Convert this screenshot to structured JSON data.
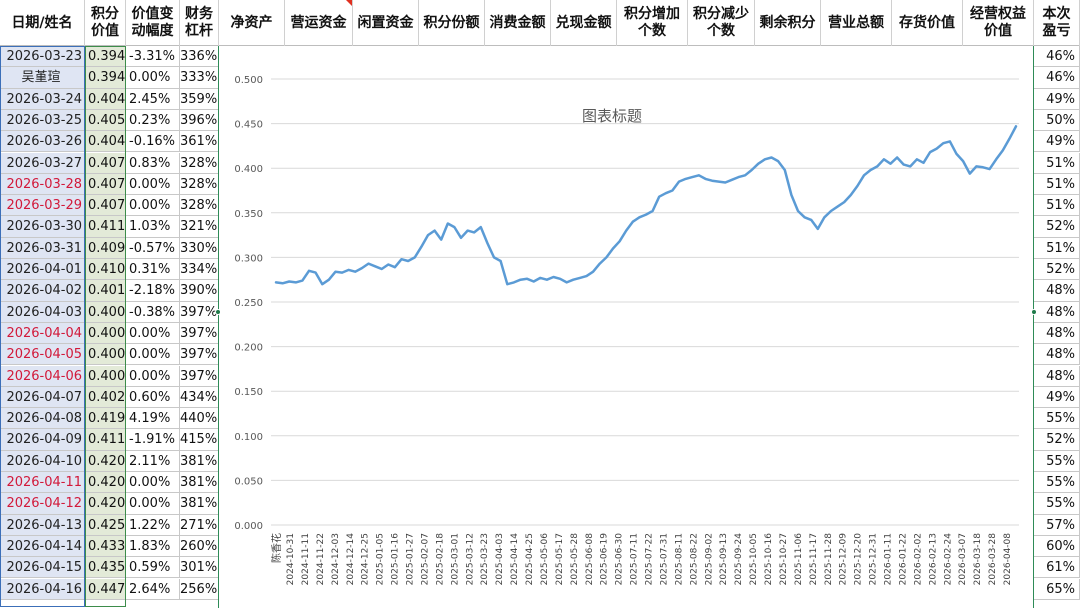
{
  "headers": {
    "date": "日期/姓名",
    "value": "积分\n价值",
    "change": "价值变\n动幅度",
    "leverage": "财务\n杠杆",
    "net_assets": "净资产",
    "operating_funds": "营运资金",
    "idle_funds": "闲置资金",
    "points_share": "积分份额",
    "consumption": "消费金额",
    "redeem": "兑现金额",
    "points_increase": "积分增加\n个数",
    "points_decrease": "积分减少\n个数",
    "remaining_points": "剩余积分",
    "revenue": "营业总额",
    "inventory": "存货价值",
    "equity_value": "经营权益\n价值",
    "pnl": "本次\n盈亏"
  },
  "rows": [
    {
      "date": "2026-03-23",
      "value": "0.394",
      "change": "-3.31%",
      "leverage": "336%",
      "pnl": "46%",
      "weekend": false
    },
    {
      "date": "吴堇瑄",
      "value": "0.394",
      "change": "0.00%",
      "leverage": "333%",
      "pnl": "46%",
      "weekend": false,
      "name_row": true
    },
    {
      "date": "2026-03-24",
      "value": "0.404",
      "change": "2.45%",
      "leverage": "359%",
      "pnl": "49%",
      "weekend": false
    },
    {
      "date": "2026-03-25",
      "value": "0.405",
      "change": "0.23%",
      "leverage": "396%",
      "pnl": "50%",
      "weekend": false
    },
    {
      "date": "2026-03-26",
      "value": "0.404",
      "change": "-0.16%",
      "leverage": "361%",
      "pnl": "49%",
      "weekend": false
    },
    {
      "date": "2026-03-27",
      "value": "0.407",
      "change": "0.83%",
      "leverage": "328%",
      "pnl": "51%",
      "weekend": false
    },
    {
      "date": "2026-03-28",
      "value": "0.407",
      "change": "0.00%",
      "leverage": "328%",
      "pnl": "51%",
      "weekend": true
    },
    {
      "date": "2026-03-29",
      "value": "0.407",
      "change": "0.00%",
      "leverage": "328%",
      "pnl": "51%",
      "weekend": true
    },
    {
      "date": "2026-03-30",
      "value": "0.411",
      "change": "1.03%",
      "leverage": "321%",
      "pnl": "52%",
      "weekend": false
    },
    {
      "date": "2026-03-31",
      "value": "0.409",
      "change": "-0.57%",
      "leverage": "330%",
      "pnl": "51%",
      "weekend": false
    },
    {
      "date": "2026-04-01",
      "value": "0.410",
      "change": "0.31%",
      "leverage": "334%",
      "pnl": "52%",
      "weekend": false
    },
    {
      "date": "2026-04-02",
      "value": "0.401",
      "change": "-2.18%",
      "leverage": "390%",
      "pnl": "48%",
      "weekend": false
    },
    {
      "date": "2026-04-03",
      "value": "0.400",
      "change": "-0.38%",
      "leverage": "397%",
      "pnl": "48%",
      "weekend": false
    },
    {
      "date": "2026-04-04",
      "value": "0.400",
      "change": "0.00%",
      "leverage": "397%",
      "pnl": "48%",
      "weekend": true
    },
    {
      "date": "2026-04-05",
      "value": "0.400",
      "change": "0.00%",
      "leverage": "397%",
      "pnl": "48%",
      "weekend": true
    },
    {
      "date": "2026-04-06",
      "value": "0.400",
      "change": "0.00%",
      "leverage": "397%",
      "pnl": "48%",
      "weekend": true
    },
    {
      "date": "2026-04-07",
      "value": "0.402",
      "change": "0.60%",
      "leverage": "434%",
      "pnl": "49%",
      "weekend": false
    },
    {
      "date": "2026-04-08",
      "value": "0.419",
      "change": "4.19%",
      "leverage": "440%",
      "pnl": "55%",
      "weekend": false
    },
    {
      "date": "2026-04-09",
      "value": "0.411",
      "change": "-1.91%",
      "leverage": "415%",
      "pnl": "52%",
      "weekend": false
    },
    {
      "date": "2026-04-10",
      "value": "0.420",
      "change": "2.11%",
      "leverage": "381%",
      "pnl": "55%",
      "weekend": false
    },
    {
      "date": "2026-04-11",
      "value": "0.420",
      "change": "0.00%",
      "leverage": "381%",
      "pnl": "55%",
      "weekend": true
    },
    {
      "date": "2026-04-12",
      "value": "0.420",
      "change": "0.00%",
      "leverage": "381%",
      "pnl": "55%",
      "weekend": true
    },
    {
      "date": "2026-04-13",
      "value": "0.425",
      "change": "1.22%",
      "leverage": "271%",
      "pnl": "57%",
      "weekend": false
    },
    {
      "date": "2026-04-14",
      "value": "0.433",
      "change": "1.83%",
      "leverage": "260%",
      "pnl": "60%",
      "weekend": false
    },
    {
      "date": "2026-04-15",
      "value": "0.435",
      "change": "0.59%",
      "leverage": "301%",
      "pnl": "61%",
      "weekend": false
    },
    {
      "date": "2026-04-16",
      "value": "0.447",
      "change": "2.64%",
      "leverage": "256%",
      "pnl": "65%",
      "weekend": false
    }
  ],
  "colors": {
    "line": "#5b9bd5",
    "weekend_text": "#d2193a",
    "date_bg": "#dfe5f3",
    "value_bg": "#e3ead8",
    "selection_green": "#2e8b57"
  },
  "chart_data": {
    "type": "line",
    "title": "图表标题",
    "first_category": "陈香花",
    "ylim": [
      0,
      0.5
    ],
    "y_ticks": [
      "0.500",
      "0.450",
      "0.400",
      "0.350",
      "0.300",
      "0.250",
      "0.200",
      "0.150",
      "0.100",
      "0.050",
      "0.000"
    ],
    "grid": true,
    "legend": "none",
    "x_tick_labels": [
      "2024-10-31",
      "2024-11-11",
      "2024-11-22",
      "2024-12-03",
      "2024-12-14",
      "2024-12-25",
      "2025-01-05",
      "2025-01-16",
      "2025-01-27",
      "2025-02-07",
      "2025-02-18",
      "2025-03-01",
      "2025-03-12",
      "2025-03-23",
      "2025-04-03",
      "2025-04-14",
      "2025-04-25",
      "2025-05-06",
      "2025-05-17",
      "2025-05-28",
      "2025-06-08",
      "2025-06-19",
      "2025-06-30",
      "2025-07-11",
      "2025-07-22",
      "2025-07-31",
      "2025-08-11",
      "2025-08-22",
      "2025-09-02",
      "2025-09-13",
      "2025-09-24",
      "2025-10-05",
      "2025-10-16",
      "2025-10-27",
      "2025-11-06",
      "2025-11-17",
      "2025-11-28",
      "2025-12-09",
      "2025-12-20",
      "2025-12-31",
      "2026-01-11",
      "2026-01-22",
      "2026-02-02",
      "2026-02-13",
      "2026-02-24",
      "2026-03-07",
      "2026-03-18",
      "2026-03-28",
      "2026-04-08"
    ],
    "series": [
      {
        "values": [
          0.272,
          0.271,
          0.273,
          0.272,
          0.274,
          0.285,
          0.283,
          0.27,
          0.275,
          0.284,
          0.283,
          0.286,
          0.284,
          0.288,
          0.293,
          0.29,
          0.287,
          0.292,
          0.289,
          0.298,
          0.296,
          0.3,
          0.312,
          0.325,
          0.33,
          0.32,
          0.338,
          0.334,
          0.322,
          0.33,
          0.328,
          0.334,
          0.316,
          0.3,
          0.296,
          0.27,
          0.272,
          0.275,
          0.276,
          0.273,
          0.277,
          0.275,
          0.278,
          0.276,
          0.272,
          0.275,
          0.277,
          0.279,
          0.284,
          0.293,
          0.3,
          0.31,
          0.318,
          0.33,
          0.34,
          0.345,
          0.348,
          0.352,
          0.368,
          0.372,
          0.375,
          0.385,
          0.388,
          0.39,
          0.392,
          0.388,
          0.386,
          0.385,
          0.384,
          0.387,
          0.39,
          0.392,
          0.398,
          0.405,
          0.41,
          0.412,
          0.408,
          0.398,
          0.37,
          0.352,
          0.345,
          0.342,
          0.332,
          0.345,
          0.352,
          0.357,
          0.362,
          0.37,
          0.38,
          0.392,
          0.398,
          0.402,
          0.41,
          0.405,
          0.412,
          0.404,
          0.402,
          0.41,
          0.406,
          0.418,
          0.422,
          0.428,
          0.43,
          0.416,
          0.408,
          0.394,
          0.402,
          0.401,
          0.399,
          0.41,
          0.42,
          0.433,
          0.447
        ]
      }
    ]
  }
}
